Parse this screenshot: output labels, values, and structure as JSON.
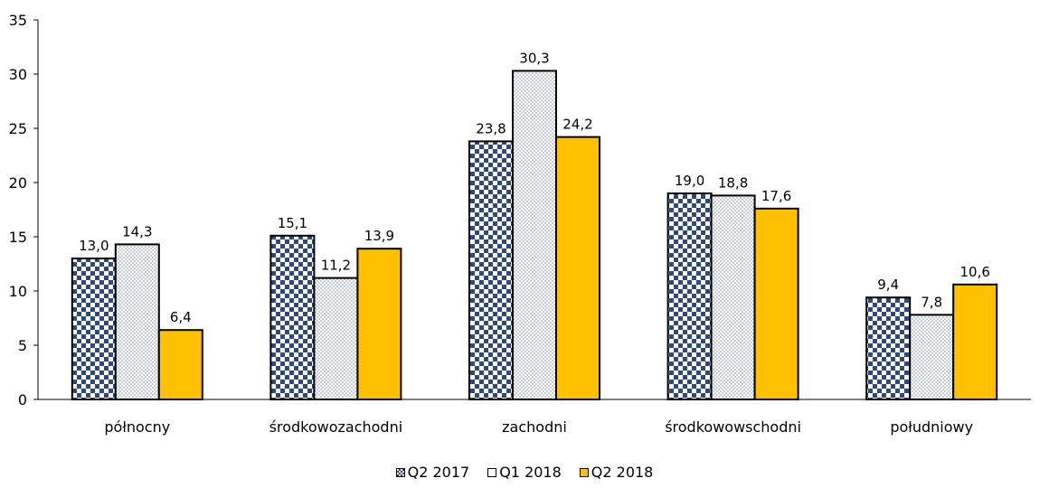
{
  "chart_data": {
    "type": "bar",
    "categories": [
      "północny",
      "środkowozachodni",
      "zachodni",
      "środkowowschodni",
      "południowy"
    ],
    "series": [
      {
        "name": "Q2 2017",
        "values": [
          13.0,
          15.1,
          23.8,
          19.0,
          9.4
        ],
        "labels": [
          "13,0",
          "15,1",
          "23,8",
          "19,0",
          "9,4"
        ],
        "color": "#2e4a7a",
        "pattern": "checker"
      },
      {
        "name": "Q1 2018",
        "values": [
          14.3,
          11.2,
          30.3,
          18.8,
          7.8
        ],
        "labels": [
          "14,3",
          "11,2",
          "30,3",
          "18,8",
          "7,8"
        ],
        "color": "#8fa0bd",
        "pattern": "dots"
      },
      {
        "name": "Q2 2018",
        "values": [
          6.4,
          13.9,
          24.2,
          17.6,
          10.6
        ],
        "labels": [
          "6,4",
          "13,9",
          "24,2",
          "17,6",
          "10,6"
        ],
        "color": "#ffc000",
        "pattern": "solid"
      }
    ],
    "y_ticks": [
      "0",
      "5",
      "10",
      "15",
      "20",
      "25",
      "30",
      "35"
    ],
    "ylim": [
      0,
      35
    ],
    "grid": false,
    "legend_position": "bottom"
  }
}
